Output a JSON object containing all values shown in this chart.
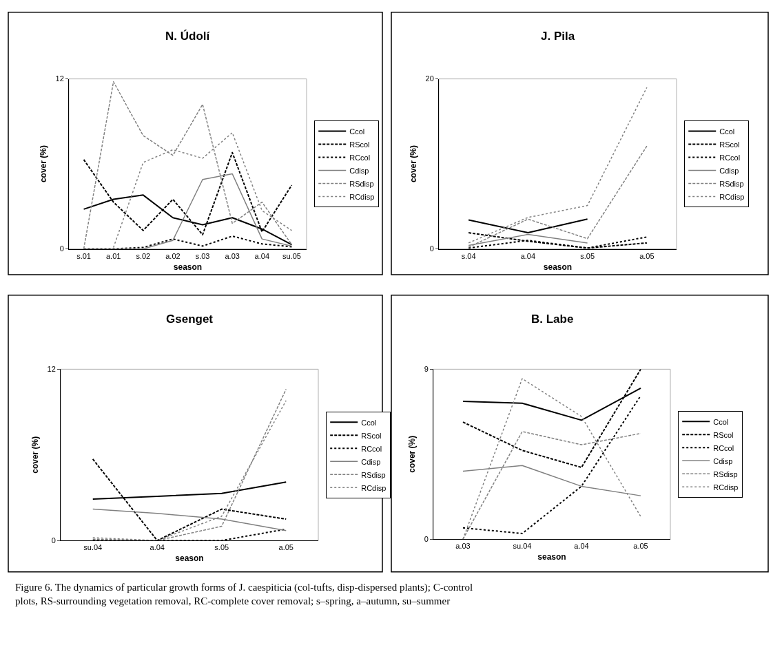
{
  "chart_data": [
    {
      "type": "line",
      "title": "N. Údolí",
      "xlabel": "season",
      "ylabel": "cover (%)",
      "categories": [
        "s.01",
        "a.01",
        "s.02",
        "a.02",
        "s.03",
        "a.03",
        "a.04",
        "su.05"
      ],
      "ylim": [
        0,
        12
      ],
      "yticks": [
        0,
        12
      ],
      "grid": false,
      "legend": "right",
      "marker": "none",
      "series": [
        {
          "name": "Ccol",
          "color": "#000000",
          "line_style": "solid",
          "values": [
            2.8,
            3.5,
            3.8,
            2.2,
            1.7,
            2.2,
            1.4,
            0.3
          ]
        },
        {
          "name": "RScol",
          "color": "#000000",
          "line_style": "dashed",
          "values": [
            6.3,
            3.3,
            1.3,
            3.5,
            1.0,
            6.8,
            1.2,
            4.5
          ]
        },
        {
          "name": "RCcol",
          "color": "#000000",
          "line_style": "dotted",
          "values": [
            0,
            0,
            0.1,
            0.7,
            0.2,
            0.9,
            0.35,
            0.15
          ]
        },
        {
          "name": "Cdisp",
          "color": "#808080",
          "line_style": "solid",
          "values": [
            0,
            0,
            0,
            0.6,
            4.9,
            5.3,
            0.7,
            0.2
          ]
        },
        {
          "name": "RSdisp",
          "color": "#808080",
          "line_style": "dashed",
          "values": [
            0,
            11.8,
            8.0,
            6.6,
            10.2,
            1.8,
            3.3,
            0.3
          ]
        },
        {
          "name": "RCdisp",
          "color": "#808080",
          "line_style": "dotted",
          "values": [
            null,
            0.1,
            6.1,
            7.0,
            6.4,
            8.2,
            2.7,
            1.3
          ]
        }
      ]
    },
    {
      "type": "line",
      "title": "J. Pila",
      "xlabel": "season",
      "ylabel": "cover (%)",
      "categories": [
        "s.04",
        "a.04",
        "s.05",
        "a.05"
      ],
      "ylim": [
        0,
        20
      ],
      "yticks": [
        0,
        20
      ],
      "grid": false,
      "legend": "right",
      "marker": "none",
      "series": [
        {
          "name": "Ccol",
          "color": "#000000",
          "line_style": "solid",
          "values": [
            3.4,
            1.9,
            3.5,
            null
          ]
        },
        {
          "name": "RScol",
          "color": "#000000",
          "line_style": "dashed",
          "values": [
            1.9,
            0.9,
            0.1,
            0.7
          ]
        },
        {
          "name": "RCcol",
          "color": "#000000",
          "line_style": "dotted",
          "values": [
            0.1,
            1.0,
            0.1,
            1.4
          ]
        },
        {
          "name": "Cdisp",
          "color": "#808080",
          "line_style": "solid",
          "values": [
            0.4,
            1.7,
            0.7,
            null
          ]
        },
        {
          "name": "RSdisp",
          "color": "#808080",
          "line_style": "dashed",
          "values": [
            0.2,
            3.5,
            1.2,
            12.1
          ]
        },
        {
          "name": "RCdisp",
          "color": "#808080",
          "line_style": "dotted",
          "values": [
            0.7,
            3.7,
            5.1,
            19.0
          ]
        }
      ]
    },
    {
      "type": "line",
      "title": "Gsenget",
      "xlabel": "season",
      "ylabel": "cover (%)",
      "categories": [
        "su.04",
        "a.04",
        "s.05",
        "a.05"
      ],
      "ylim": [
        0,
        12
      ],
      "yticks": [
        0,
        12
      ],
      "grid": false,
      "legend": "right",
      "marker": "none",
      "series": [
        {
          "name": "Ccol",
          "color": "#000000",
          "line_style": "solid",
          "values": [
            2.9,
            3.1,
            3.3,
            4.1
          ]
        },
        {
          "name": "RScol",
          "color": "#000000",
          "line_style": "dashed",
          "values": [
            5.7,
            0,
            2.2,
            1.5
          ]
        },
        {
          "name": "RCcol",
          "color": "#000000",
          "line_style": "dotted",
          "values": [
            0,
            0,
            0,
            0.8
          ]
        },
        {
          "name": "Cdisp",
          "color": "#808080",
          "line_style": "solid",
          "values": [
            2.2,
            1.9,
            1.5,
            0.7
          ]
        },
        {
          "name": "RSdisp",
          "color": "#808080",
          "line_style": "dashed",
          "values": [
            0.1,
            0,
            1.0,
            10.6
          ]
        },
        {
          "name": "RCdisp",
          "color": "#808080",
          "line_style": "dotted",
          "values": [
            0.2,
            0,
            1.7,
            9.8
          ]
        }
      ]
    },
    {
      "type": "line",
      "title": "B. Labe",
      "xlabel": "season",
      "ylabel": "cover (%)",
      "categories": [
        "a.03",
        "su.04",
        "a.04",
        "a.05"
      ],
      "ylim": [
        0,
        9
      ],
      "yticks": [
        0,
        9
      ],
      "grid": false,
      "legend": "right",
      "marker": "none",
      "annotations": [
        "Figure 6. The dynamics of particular growth forms of J. caespiticia (col-tufts, disp-dispersed plants); C-control plots, RS-surrounding vegetation removal, RC-complete cover removal; s–spring, a–autumn, su–summer"
      ],
      "series": [
        {
          "name": "Ccol",
          "color": "#000000",
          "line_style": "solid",
          "values": [
            7.3,
            7.2,
            6.3,
            8.0
          ]
        },
        {
          "name": "RScol",
          "color": "#000000",
          "line_style": "dashed",
          "values": [
            6.2,
            4.7,
            3.8,
            9.0
          ]
        },
        {
          "name": "RCcol",
          "color": "#000000",
          "line_style": "dotted",
          "values": [
            0.6,
            0.3,
            2.8,
            7.6
          ]
        },
        {
          "name": "Cdisp",
          "color": "#808080",
          "line_style": "solid",
          "values": [
            3.6,
            3.9,
            2.8,
            2.3
          ]
        },
        {
          "name": "RSdisp",
          "color": "#808080",
          "line_style": "dashed",
          "values": [
            0,
            5.7,
            5.0,
            5.6
          ]
        },
        {
          "name": "RCdisp",
          "color": "#808080",
          "line_style": "dotted",
          "values": [
            0,
            8.5,
            6.5,
            1.2
          ]
        }
      ]
    }
  ]
}
